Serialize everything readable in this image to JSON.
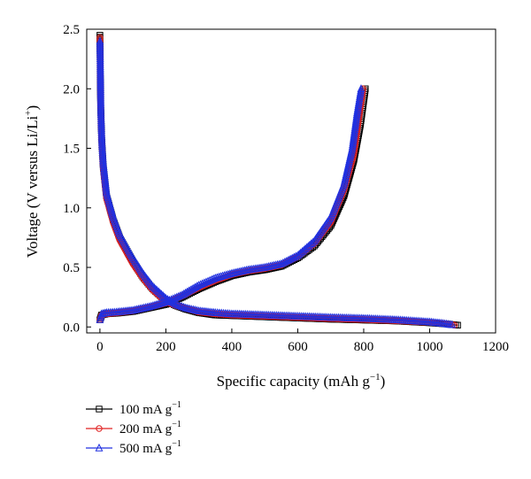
{
  "chart_data": {
    "type": "line",
    "title": "",
    "xlabel": "Specific capacity (mAh g",
    "xlabel_sup": "−1",
    "xlabel_tail": ")",
    "ylabel": "Voltage (V versus Li/Li",
    "ylabel_sup": "+",
    "ylabel_tail": ")",
    "xlim": [
      -40,
      1200
    ],
    "ylim": [
      -0.05,
      2.5
    ],
    "xticks": [
      0,
      200,
      400,
      600,
      800,
      1000,
      1200
    ],
    "yticks": [
      0.0,
      0.5,
      1.0,
      1.5,
      2.0,
      2.5
    ],
    "xtick_labels": [
      "0",
      "200",
      "400",
      "600",
      "800",
      "1000",
      "1200"
    ],
    "ytick_labels": [
      "0.0",
      "0.5",
      "1.0",
      "1.5",
      "2.0",
      "2.5"
    ],
    "grid": false,
    "legend_position": "bottom-left",
    "series": [
      {
        "name": "100 mA g",
        "name_sup": "−1",
        "color": "#000000",
        "marker": "square",
        "discharge": {
          "x": [
            0,
            2,
            5,
            10,
            20,
            40,
            60,
            80,
            100,
            130,
            160,
            200,
            230,
            260,
            300,
            350,
            400,
            500,
            600,
            700,
            800,
            900,
            1000,
            1050,
            1085
          ],
          "y": [
            2.45,
            1.9,
            1.6,
            1.35,
            1.1,
            0.9,
            0.75,
            0.65,
            0.55,
            0.42,
            0.32,
            0.22,
            0.18,
            0.15,
            0.12,
            0.1,
            0.095,
            0.085,
            0.075,
            0.065,
            0.058,
            0.05,
            0.035,
            0.025,
            0.015
          ]
        },
        "charge": {
          "x": [
            0,
            5,
            20,
            50,
            100,
            150,
            200,
            250,
            300,
            350,
            400,
            450,
            500,
            550,
            600,
            650,
            700,
            740,
            770,
            790,
            805
          ],
          "y": [
            0.06,
            0.1,
            0.11,
            0.115,
            0.13,
            0.16,
            0.19,
            0.25,
            0.32,
            0.38,
            0.43,
            0.46,
            0.48,
            0.51,
            0.58,
            0.68,
            0.85,
            1.1,
            1.4,
            1.7,
            2.0
          ]
        }
      },
      {
        "name": "200 mA g",
        "name_sup": "−1",
        "color": "#e02020",
        "marker": "circle",
        "discharge": {
          "x": [
            0,
            2,
            5,
            10,
            20,
            40,
            60,
            80,
            100,
            130,
            160,
            200,
            230,
            260,
            300,
            350,
            400,
            500,
            600,
            700,
            800,
            900,
            1000,
            1050,
            1075
          ],
          "y": [
            2.43,
            1.88,
            1.58,
            1.33,
            1.08,
            0.88,
            0.73,
            0.63,
            0.53,
            0.41,
            0.31,
            0.21,
            0.18,
            0.155,
            0.125,
            0.11,
            0.1,
            0.09,
            0.08,
            0.07,
            0.062,
            0.052,
            0.038,
            0.027,
            0.015
          ]
        },
        "charge": {
          "x": [
            0,
            5,
            20,
            50,
            100,
            150,
            200,
            250,
            300,
            350,
            400,
            450,
            500,
            550,
            600,
            650,
            700,
            740,
            770,
            785,
            798
          ],
          "y": [
            0.06,
            0.1,
            0.11,
            0.118,
            0.135,
            0.165,
            0.2,
            0.26,
            0.33,
            0.39,
            0.44,
            0.47,
            0.49,
            0.52,
            0.59,
            0.7,
            0.88,
            1.15,
            1.45,
            1.75,
            2.0
          ]
        }
      },
      {
        "name": "500 mA g",
        "name_sup": "−1",
        "color": "#2030e0",
        "marker": "triangle",
        "discharge": {
          "x": [
            0,
            1,
            3,
            6,
            10,
            20,
            40,
            60,
            80,
            100,
            130,
            160,
            200,
            230,
            260,
            300,
            350,
            400,
            500,
            600,
            700,
            800,
            900,
            1000,
            1040,
            1068
          ],
          "y": [
            2.4,
            2.22,
            1.8,
            1.55,
            1.38,
            1.13,
            0.93,
            0.78,
            0.68,
            0.58,
            0.45,
            0.34,
            0.24,
            0.19,
            0.16,
            0.135,
            0.12,
            0.11,
            0.1,
            0.09,
            0.08,
            0.072,
            0.06,
            0.042,
            0.03,
            0.018
          ]
        },
        "charge": {
          "x": [
            0,
            5,
            20,
            50,
            100,
            150,
            200,
            250,
            300,
            350,
            400,
            450,
            500,
            550,
            600,
            650,
            700,
            740,
            765,
            780,
            792
          ],
          "y": [
            0.06,
            0.11,
            0.12,
            0.125,
            0.14,
            0.17,
            0.21,
            0.27,
            0.35,
            0.41,
            0.45,
            0.48,
            0.5,
            0.53,
            0.6,
            0.72,
            0.92,
            1.2,
            1.5,
            1.8,
            2.0
          ]
        }
      }
    ]
  }
}
